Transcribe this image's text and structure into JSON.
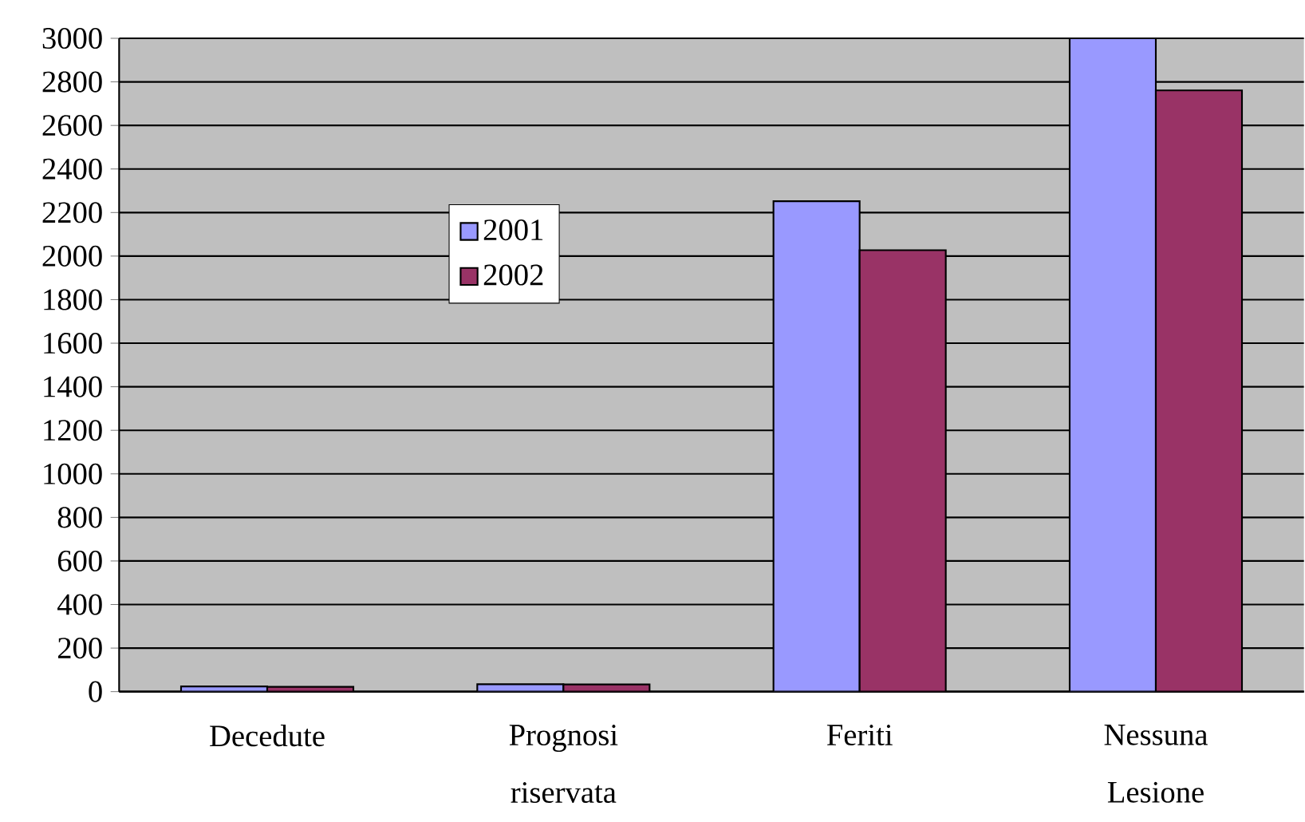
{
  "chart_data": {
    "type": "bar",
    "categories": [
      "Decedute",
      "Prognosi riservata",
      "Feriti",
      "Nessuna Lesione"
    ],
    "series": [
      {
        "name": "2001",
        "color": "#9999ff",
        "values": [
          24,
          34,
          2252,
          3000
        ]
      },
      {
        "name": "2002",
        "color": "#993366",
        "values": [
          22,
          33,
          2027,
          2761
        ]
      }
    ],
    "ylim": [
      0,
      3000
    ],
    "yticks": [
      0,
      200,
      400,
      600,
      800,
      1000,
      1200,
      1400,
      1600,
      1800,
      2000,
      2200,
      2400,
      2600,
      2800,
      3000
    ],
    "grid": "y",
    "legend": "center"
  }
}
